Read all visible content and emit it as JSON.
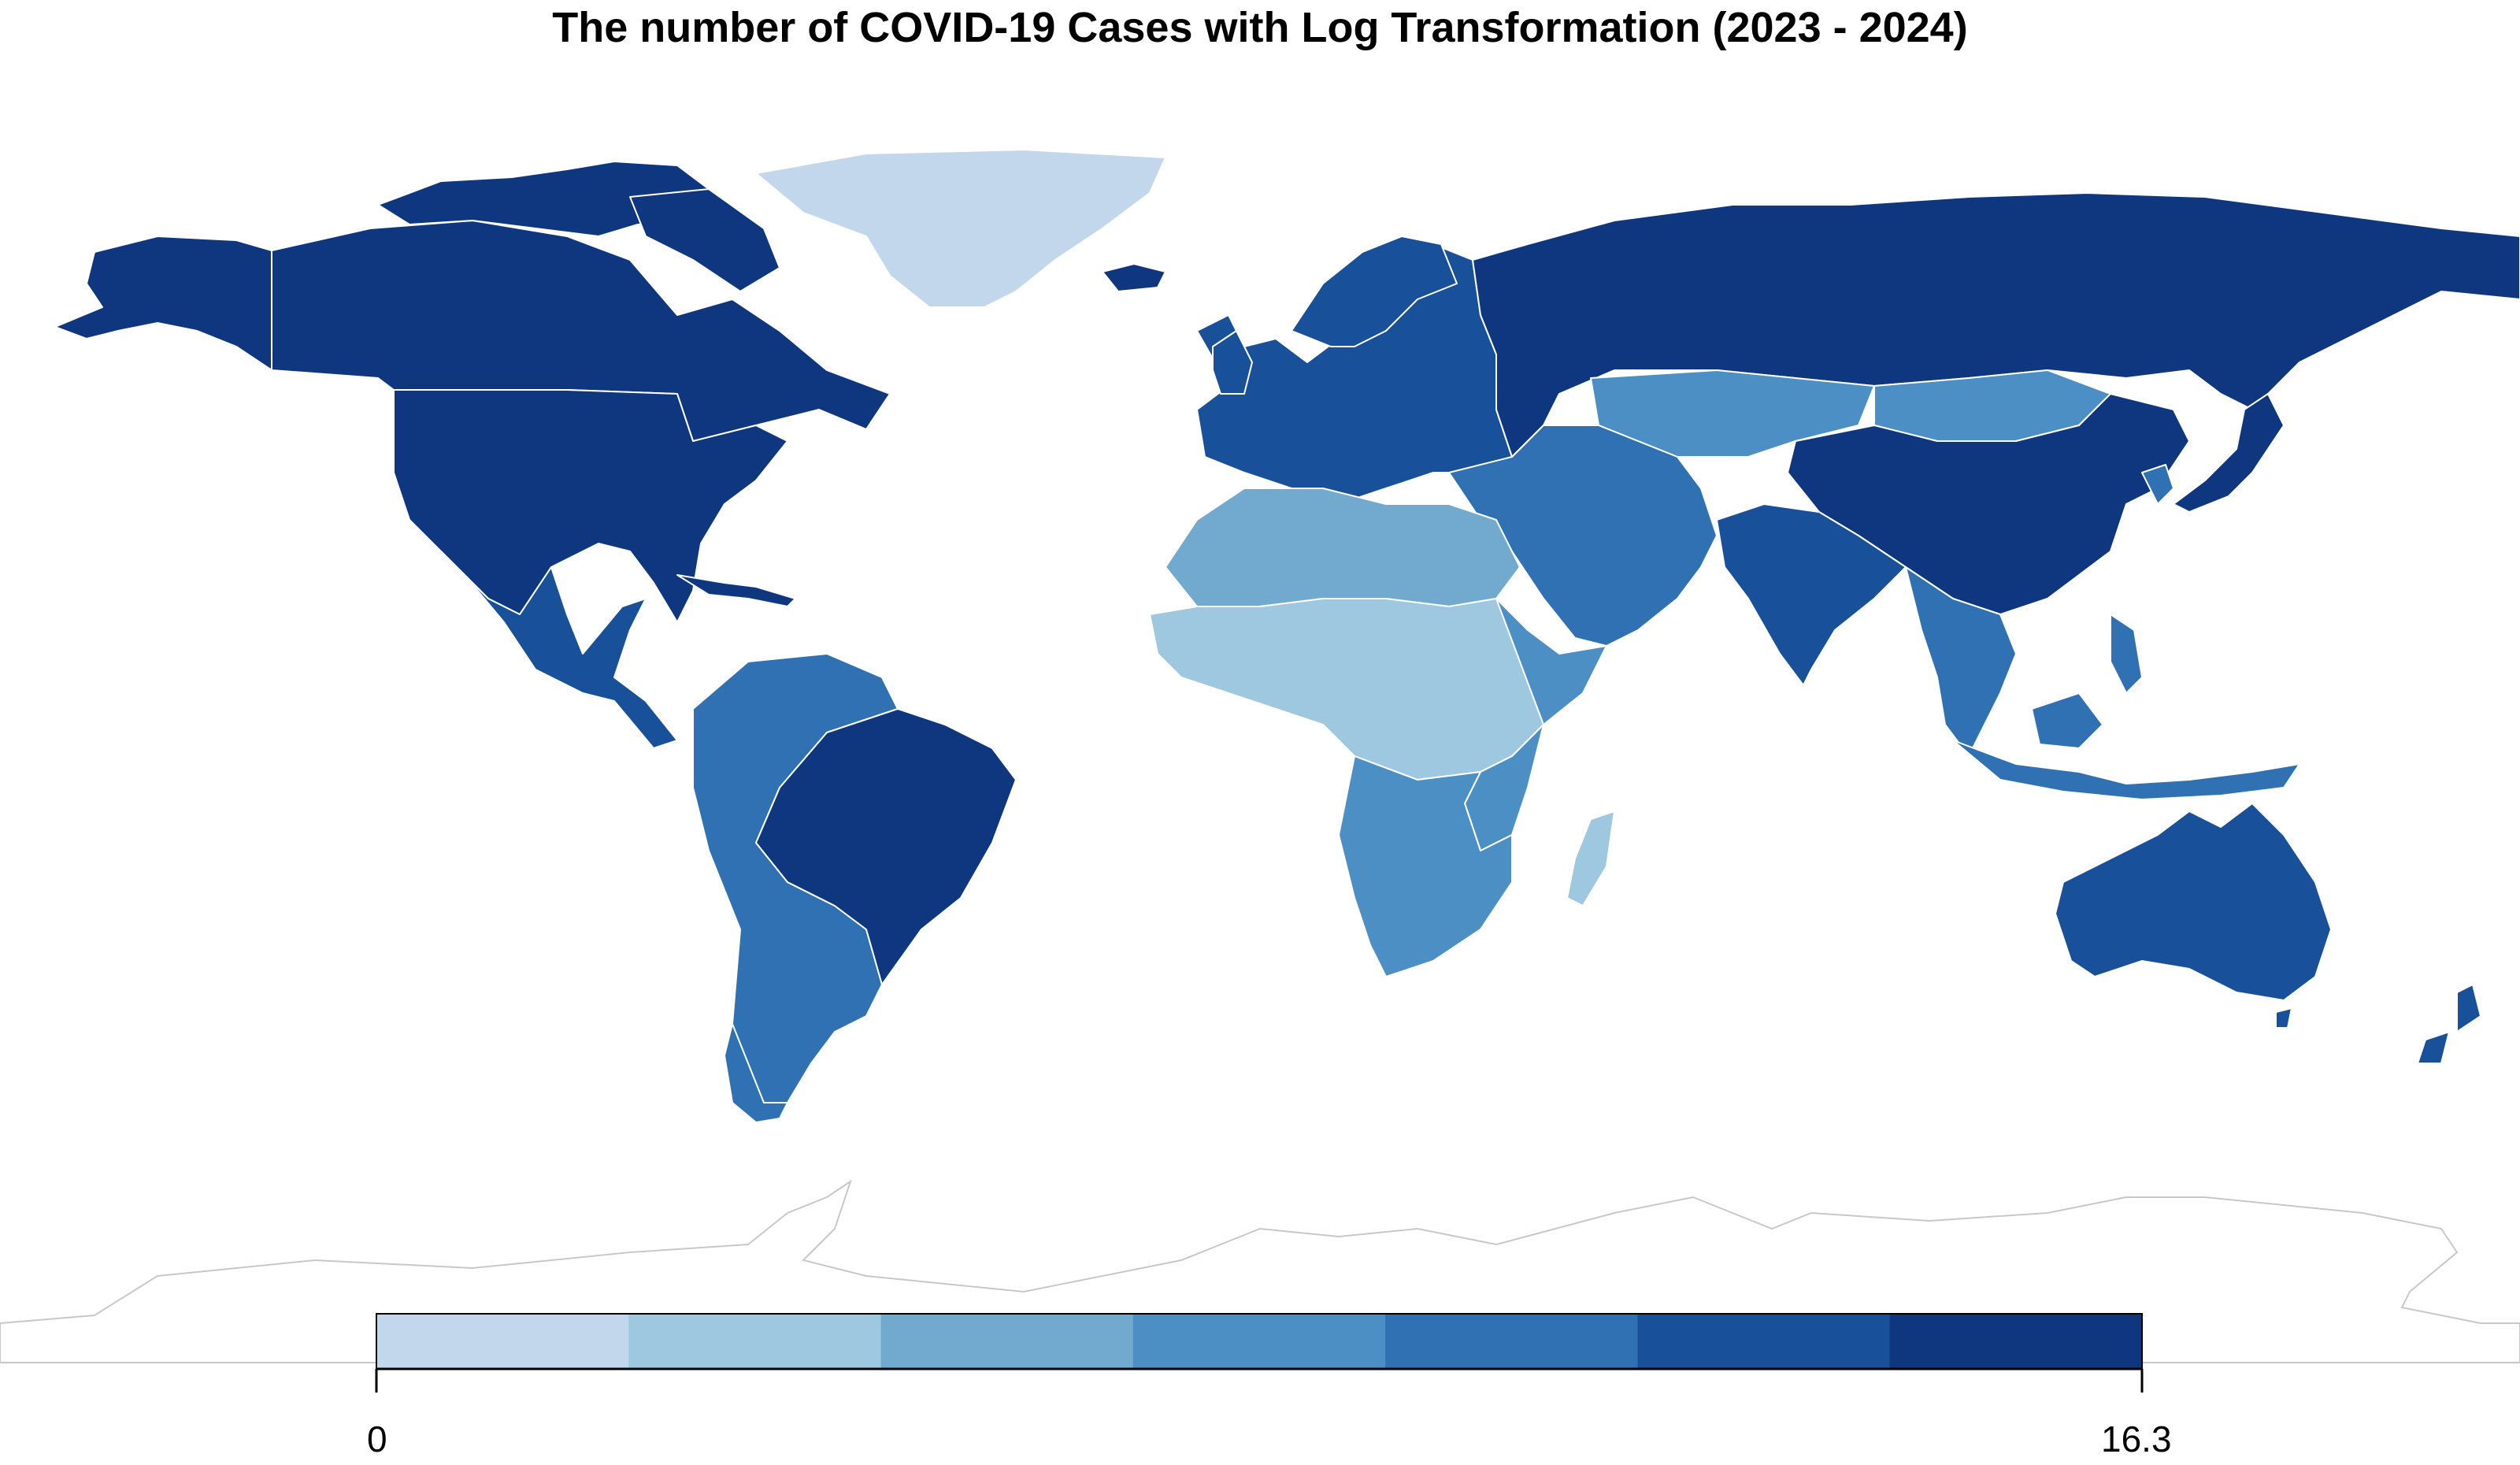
{
  "title": "The number of COVID-19 Cases with Log Transformation (2023 - 2024)",
  "legend": {
    "min_label": "0",
    "max_label": "16.3",
    "range": [
      0,
      16.3
    ],
    "classes": 7,
    "colors": [
      "#c2d7ec",
      "#9ec8e0",
      "#72aacf",
      "#4b8fc5",
      "#2f71b2",
      "#18519a",
      "#0e3780"
    ]
  },
  "ocean_color": "#ffffff",
  "no_data_outline_color": "#c8c8c8",
  "regions": [
    {
      "name": "North America (US, Canada, Alaska)",
      "class": 6
    },
    {
      "name": "Greenland",
      "class": 0
    },
    {
      "name": "Mexico / Central America",
      "class": 5
    },
    {
      "name": "Brazil",
      "class": 6
    },
    {
      "name": "Rest of South America",
      "class": 4
    },
    {
      "name": "Russia",
      "class": 6
    },
    {
      "name": "China",
      "class": 6
    },
    {
      "name": "Mongolia / Kazakhstan",
      "class": 3
    },
    {
      "name": "Europe",
      "class": 5
    },
    {
      "name": "North Africa",
      "class": 2
    },
    {
      "name": "Middle Africa",
      "class": 1
    },
    {
      "name": "Southern Africa",
      "class": 3
    },
    {
      "name": "Middle East",
      "class": 4
    },
    {
      "name": "India",
      "class": 5
    },
    {
      "name": "Southeast Asia",
      "class": 4
    },
    {
      "name": "Japan / Korea",
      "class": 6
    },
    {
      "name": "Australia",
      "class": 5
    },
    {
      "name": "New Zealand",
      "class": 5
    },
    {
      "name": "Antarctica",
      "class": null
    }
  ]
}
